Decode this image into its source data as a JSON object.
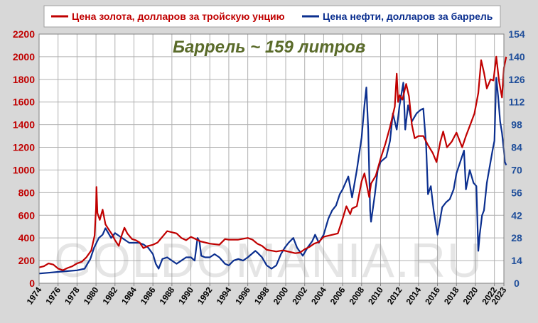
{
  "chart_data": {
    "type": "line",
    "annotation": "Баррель ~ 159 литров",
    "watermark": "GOLDOMANIA.RU",
    "x_range": [
      1974,
      2023
    ],
    "x_ticks": [
      "1974",
      "1976",
      "1978",
      "1980",
      "1982",
      "1984",
      "1986",
      "1988",
      "1990",
      "1992",
      "1994",
      "1996",
      "1998",
      "2000",
      "2002",
      "2004",
      "2006",
      "2008",
      "2010",
      "2012",
      "2014",
      "2016",
      "2018",
      "2020",
      "2022",
      "2023"
    ],
    "y_left": {
      "min": 0,
      "max": 2200,
      "ticks": [
        "0",
        "200",
        "400",
        "600",
        "800",
        "1000",
        "1200",
        "1400",
        "1600",
        "1800",
        "2000",
        "2200"
      ],
      "color": "#c00000"
    },
    "y_right": {
      "min": 0,
      "max": 154,
      "ticks": [
        "0",
        "14",
        "28",
        "42",
        "56",
        "70",
        "84",
        "98",
        "112",
        "126",
        "140",
        "154"
      ],
      "color": "#1f4e9a"
    },
    "grid": true,
    "legend_position": "top",
    "series": [
      {
        "name": "Цена золота, долларов за тройскую унцию",
        "color": "#c00000",
        "axis": "left",
        "points": [
          [
            1974.0,
            140
          ],
          [
            1974.5,
            150
          ],
          [
            1975.0,
            175
          ],
          [
            1975.5,
            165
          ],
          [
            1976.0,
            130
          ],
          [
            1976.5,
            115
          ],
          [
            1977.0,
            135
          ],
          [
            1977.5,
            150
          ],
          [
            1978.0,
            175
          ],
          [
            1978.5,
            190
          ],
          [
            1979.0,
            230
          ],
          [
            1979.5,
            290
          ],
          [
            1979.85,
            420
          ],
          [
            1980.0,
            660
          ],
          [
            1980.05,
            850
          ],
          [
            1980.15,
            620
          ],
          [
            1980.4,
            560
          ],
          [
            1980.7,
            650
          ],
          [
            1981.0,
            520
          ],
          [
            1981.3,
            480
          ],
          [
            1981.7,
            430
          ],
          [
            1982.0,
            380
          ],
          [
            1982.4,
            330
          ],
          [
            1982.7,
            420
          ],
          [
            1983.0,
            490
          ],
          [
            1983.3,
            440
          ],
          [
            1983.8,
            390
          ],
          [
            1984.2,
            380
          ],
          [
            1984.6,
            360
          ],
          [
            1985.0,
            310
          ],
          [
            1985.5,
            330
          ],
          [
            1986.0,
            340
          ],
          [
            1986.5,
            360
          ],
          [
            1987.0,
            410
          ],
          [
            1987.5,
            460
          ],
          [
            1988.0,
            450
          ],
          [
            1988.5,
            440
          ],
          [
            1989.0,
            400
          ],
          [
            1989.5,
            380
          ],
          [
            1990.0,
            410
          ],
          [
            1990.5,
            390
          ],
          [
            1991.0,
            370
          ],
          [
            1992.0,
            350
          ],
          [
            1993.0,
            340
          ],
          [
            1993.6,
            390
          ],
          [
            1994.0,
            385
          ],
          [
            1995.0,
            385
          ],
          [
            1996.0,
            400
          ],
          [
            1996.5,
            385
          ],
          [
            1997.0,
            350
          ],
          [
            1997.5,
            330
          ],
          [
            1998.0,
            295
          ],
          [
            1999.0,
            280
          ],
          [
            1999.7,
            290
          ],
          [
            2000.0,
            285
          ],
          [
            2001.0,
            265
          ],
          [
            2001.5,
            270
          ],
          [
            2002.0,
            300
          ],
          [
            2002.5,
            320
          ],
          [
            2003.0,
            350
          ],
          [
            2003.5,
            365
          ],
          [
            2004.0,
            410
          ],
          [
            2005.0,
            430
          ],
          [
            2005.5,
            440
          ],
          [
            2006.0,
            570
          ],
          [
            2006.4,
            680
          ],
          [
            2006.8,
            610
          ],
          [
            2007.0,
            660
          ],
          [
            2007.5,
            680
          ],
          [
            2008.0,
            900
          ],
          [
            2008.3,
            970
          ],
          [
            2008.8,
            760
          ],
          [
            2009.0,
            880
          ],
          [
            2009.5,
            950
          ],
          [
            2010.0,
            1100
          ],
          [
            2010.5,
            1230
          ],
          [
            2011.0,
            1380
          ],
          [
            2011.5,
            1560
          ],
          [
            2011.7,
            1850
          ],
          [
            2011.85,
            1600
          ],
          [
            2012.0,
            1660
          ],
          [
            2012.3,
            1620
          ],
          [
            2012.7,
            1760
          ],
          [
            2013.0,
            1650
          ],
          [
            2013.3,
            1400
          ],
          [
            2013.6,
            1280
          ],
          [
            2014.0,
            1300
          ],
          [
            2014.5,
            1300
          ],
          [
            2015.0,
            1220
          ],
          [
            2015.5,
            1150
          ],
          [
            2015.9,
            1070
          ],
          [
            2016.3,
            1250
          ],
          [
            2016.6,
            1340
          ],
          [
            2017.0,
            1200
          ],
          [
            2017.5,
            1250
          ],
          [
            2018.0,
            1330
          ],
          [
            2018.6,
            1200
          ],
          [
            2019.0,
            1300
          ],
          [
            2019.5,
            1410
          ],
          [
            2019.9,
            1500
          ],
          [
            2020.3,
            1680
          ],
          [
            2020.6,
            1970
          ],
          [
            2020.9,
            1860
          ],
          [
            2021.2,
            1720
          ],
          [
            2021.6,
            1800
          ],
          [
            2021.9,
            1790
          ],
          [
            2022.2,
            2000
          ],
          [
            2022.5,
            1780
          ],
          [
            2022.8,
            1640
          ],
          [
            2023.0,
            1900
          ],
          [
            2023.25,
            2000
          ]
        ]
      },
      {
        "name": "Цена нефти, долларов за баррель",
        "color": "#0b2f8f",
        "axis": "right",
        "points": [
          [
            1974.0,
            6
          ],
          [
            1975.0,
            6.5
          ],
          [
            1976.0,
            7
          ],
          [
            1977.0,
            7.5
          ],
          [
            1978.0,
            8
          ],
          [
            1978.8,
            9
          ],
          [
            1979.0,
            11
          ],
          [
            1979.4,
            15
          ],
          [
            1979.8,
            22
          ],
          [
            1980.3,
            28
          ],
          [
            1980.7,
            30
          ],
          [
            1981.0,
            34
          ],
          [
            1981.2,
            32
          ],
          [
            1981.6,
            28
          ],
          [
            1982.0,
            31
          ],
          [
            1982.5,
            29
          ],
          [
            1983.0,
            27
          ],
          [
            1983.5,
            25
          ],
          [
            1984.0,
            25
          ],
          [
            1984.5,
            25
          ],
          [
            1985.0,
            24
          ],
          [
            1985.5,
            22
          ],
          [
            1986.0,
            18
          ],
          [
            1986.3,
            12
          ],
          [
            1986.6,
            9
          ],
          [
            1987.0,
            15
          ],
          [
            1987.5,
            16
          ],
          [
            1988.0,
            14
          ],
          [
            1988.5,
            12
          ],
          [
            1989.0,
            14
          ],
          [
            1989.5,
            16
          ],
          [
            1990.0,
            16
          ],
          [
            1990.4,
            14
          ],
          [
            1990.7,
            28
          ],
          [
            1990.9,
            26
          ],
          [
            1991.1,
            17
          ],
          [
            1991.5,
            16
          ],
          [
            1992.0,
            16
          ],
          [
            1992.5,
            18
          ],
          [
            1993.0,
            16
          ],
          [
            1993.6,
            12
          ],
          [
            1994.0,
            11
          ],
          [
            1994.5,
            14
          ],
          [
            1995.0,
            15
          ],
          [
            1995.5,
            14
          ],
          [
            1996.0,
            16
          ],
          [
            1996.8,
            20
          ],
          [
            1997.0,
            19
          ],
          [
            1997.5,
            16
          ],
          [
            1998.0,
            11
          ],
          [
            1998.5,
            9
          ],
          [
            1999.0,
            11
          ],
          [
            1999.5,
            18
          ],
          [
            1999.9,
            22
          ],
          [
            2000.3,
            25
          ],
          [
            2000.8,
            28
          ],
          [
            2001.2,
            22
          ],
          [
            2001.8,
            17
          ],
          [
            2002.3,
            22
          ],
          [
            2002.8,
            26
          ],
          [
            2003.1,
            30
          ],
          [
            2003.5,
            25
          ],
          [
            2004.0,
            30
          ],
          [
            2004.5,
            40
          ],
          [
            2004.9,
            45
          ],
          [
            2005.3,
            48
          ],
          [
            2005.7,
            55
          ],
          [
            2006.0,
            58
          ],
          [
            2006.6,
            66
          ],
          [
            2007.0,
            53
          ],
          [
            2007.5,
            70
          ],
          [
            2008.0,
            90
          ],
          [
            2008.3,
            110
          ],
          [
            2008.5,
            121
          ],
          [
            2008.7,
            95
          ],
          [
            2008.9,
            45
          ],
          [
            2009.0,
            38
          ],
          [
            2009.4,
            55
          ],
          [
            2009.7,
            70
          ],
          [
            2010.0,
            75
          ],
          [
            2010.6,
            78
          ],
          [
            2011.0,
            88
          ],
          [
            2011.3,
            105
          ],
          [
            2011.7,
            95
          ],
          [
            2012.0,
            110
          ],
          [
            2012.4,
            124
          ],
          [
            2012.6,
            95
          ],
          [
            2012.9,
            110
          ],
          [
            2013.3,
            100
          ],
          [
            2013.8,
            105
          ],
          [
            2014.2,
            107
          ],
          [
            2014.5,
            108
          ],
          [
            2014.8,
            85
          ],
          [
            2015.0,
            55
          ],
          [
            2015.3,
            60
          ],
          [
            2015.6,
            45
          ],
          [
            2016.0,
            30
          ],
          [
            2016.5,
            47
          ],
          [
            2016.9,
            50
          ],
          [
            2017.3,
            52
          ],
          [
            2017.7,
            58
          ],
          [
            2018.0,
            68
          ],
          [
            2018.4,
            75
          ],
          [
            2018.8,
            82
          ],
          [
            2019.0,
            58
          ],
          [
            2019.4,
            70
          ],
          [
            2019.8,
            62
          ],
          [
            2020.1,
            60
          ],
          [
            2020.3,
            20
          ],
          [
            2020.45,
            30
          ],
          [
            2020.7,
            42
          ],
          [
            2020.9,
            45
          ],
          [
            2021.2,
            62
          ],
          [
            2021.5,
            72
          ],
          [
            2021.8,
            82
          ],
          [
            2022.0,
            88
          ],
          [
            2022.2,
            127
          ],
          [
            2022.4,
            115
          ],
          [
            2022.6,
            100
          ],
          [
            2022.8,
            93
          ],
          [
            2023.0,
            82
          ],
          [
            2023.1,
            75
          ],
          [
            2023.25,
            73
          ]
        ]
      }
    ]
  }
}
